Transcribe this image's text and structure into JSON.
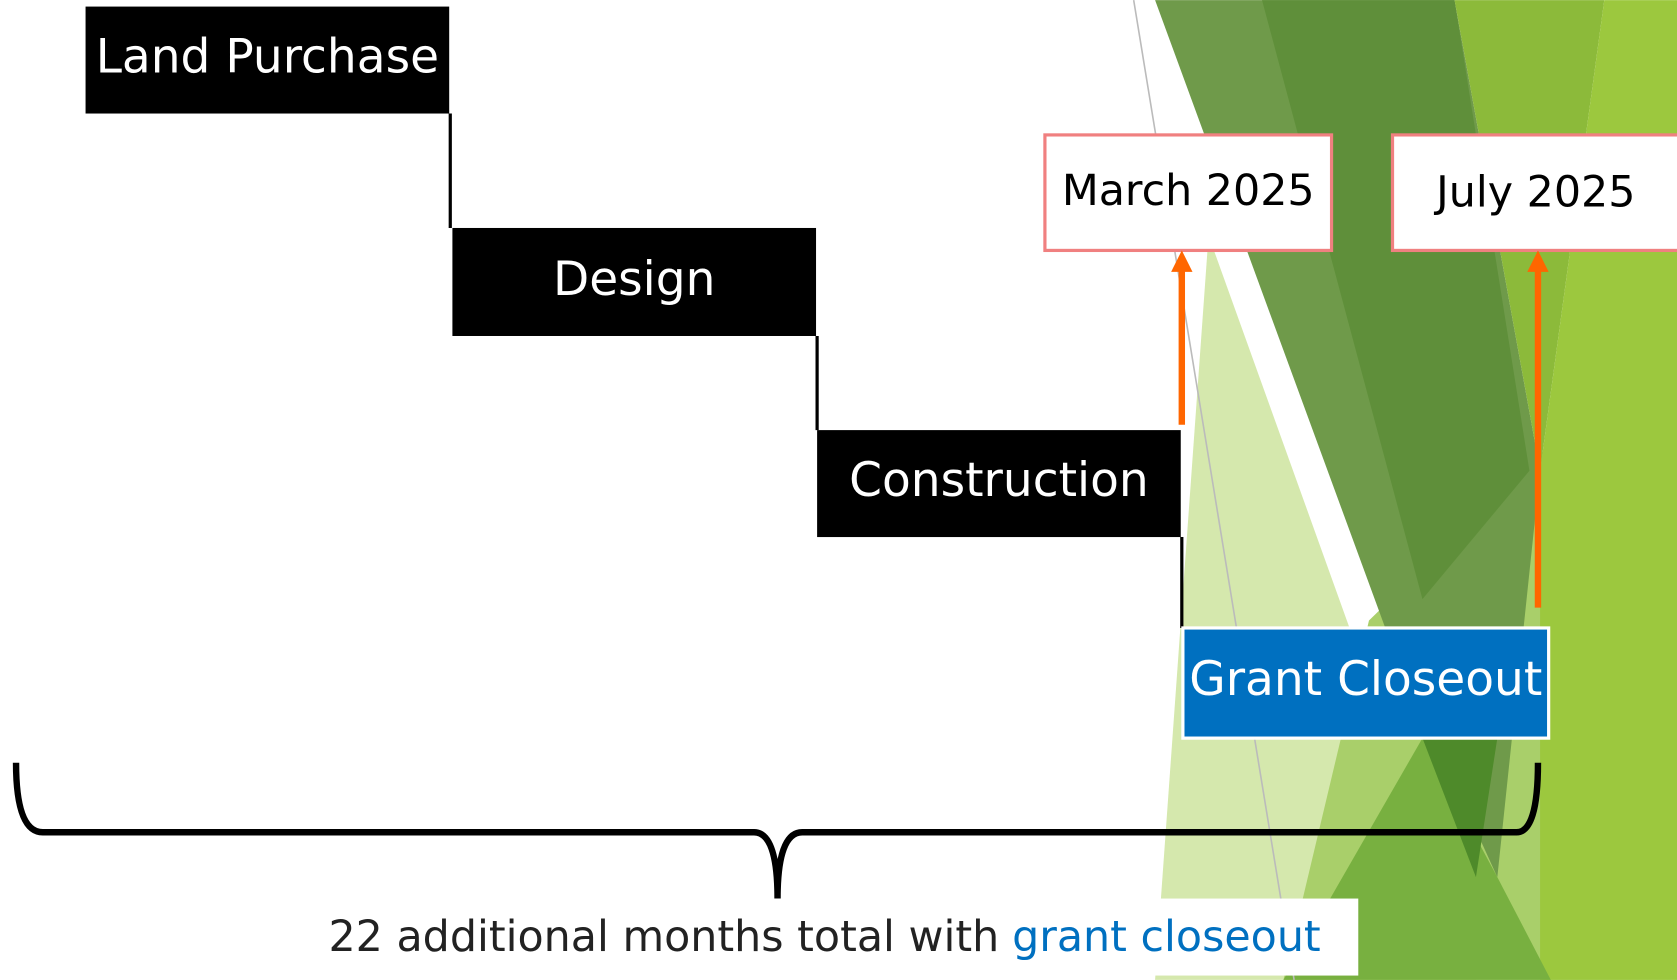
{
  "steps": [
    {
      "label": "Land Purchase"
    },
    {
      "label": "Design"
    },
    {
      "label": "Construction"
    },
    {
      "label": "Grant Closeout"
    }
  ],
  "milestones": [
    {
      "label": "March 2025"
    },
    {
      "label": "July 2025"
    }
  ],
  "summary": {
    "text": "22 additional months total with",
    "highlight": "grant closeout"
  }
}
